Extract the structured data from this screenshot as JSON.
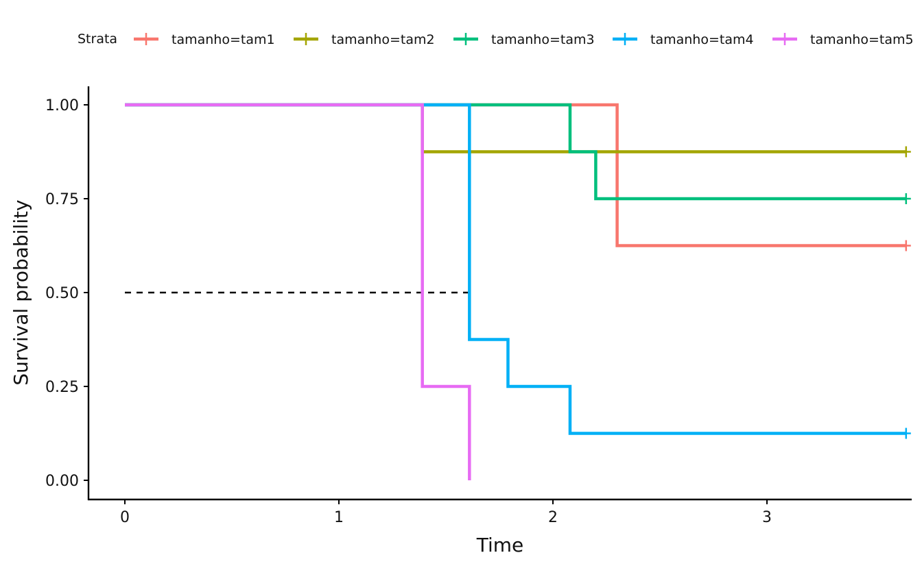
{
  "chart_data": {
    "type": "line",
    "step": "post",
    "xlabel": "Time",
    "ylabel": "Survival probability",
    "xlim": [
      -0.17,
      3.65
    ],
    "ylim": [
      -0.05,
      1.05
    ],
    "x_ticks": [
      0,
      1,
      2,
      3
    ],
    "y_ticks": [
      0,
      0.25,
      0.5,
      0.75,
      1.0
    ],
    "x_tick_labels": [
      "0",
      "1",
      "2",
      "3"
    ],
    "y_tick_labels": [
      "0.00",
      "0.25",
      "0.50",
      "0.75",
      "1.00"
    ],
    "grid": false,
    "legend": {
      "position": "top",
      "title": "Strata",
      "entries": [
        "tamanho=tam1",
        "tamanho=tam2",
        "tamanho=tam3",
        "tamanho=tam4",
        "tamanho=tam5"
      ]
    },
    "series": [
      {
        "name": "tamanho=tam1",
        "color": "#F8766D",
        "x": [
          0,
          2.3,
          3.65
        ],
        "y": [
          1.0,
          0.625,
          0.625
        ],
        "censor": [
          {
            "x": 3.65,
            "y": 0.625
          }
        ]
      },
      {
        "name": "tamanho=tam2",
        "color": "#A3A500",
        "x": [
          0,
          1.39,
          3.65
        ],
        "y": [
          1.0,
          0.875,
          0.875
        ],
        "censor": [
          {
            "x": 3.65,
            "y": 0.875
          }
        ]
      },
      {
        "name": "tamanho=tam3",
        "color": "#00BF7D",
        "x": [
          0,
          2.08,
          2.2,
          3.65
        ],
        "y": [
          1.0,
          0.875,
          0.75,
          0.75
        ],
        "censor": [
          {
            "x": 3.65,
            "y": 0.75
          }
        ]
      },
      {
        "name": "tamanho=tam4",
        "color": "#00B0F6",
        "x": [
          0,
          1.61,
          1.79,
          2.08,
          3.65
        ],
        "y": [
          1.0,
          0.375,
          0.25,
          0.125,
          0.125
        ],
        "censor": [
          {
            "x": 3.65,
            "y": 0.125
          }
        ]
      },
      {
        "name": "tamanho=tam5",
        "color": "#E76BF3",
        "x": [
          0,
          1.39,
          1.61
        ],
        "y": [
          1.0,
          0.25,
          0.0
        ],
        "censor": []
      }
    ],
    "median_line": {
      "y": 0.5,
      "x_end": 1.61,
      "style": "dashed",
      "color": "#000000"
    }
  }
}
